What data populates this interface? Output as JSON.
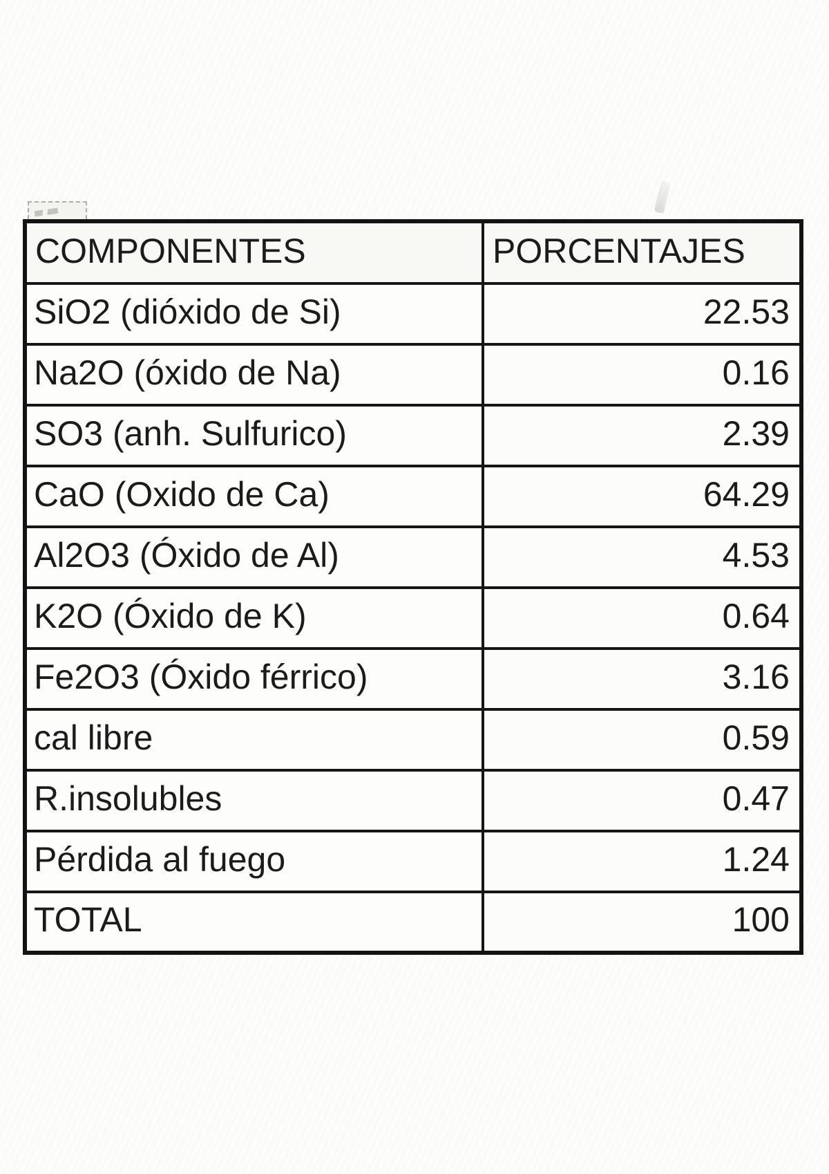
{
  "table": {
    "columns": [
      {
        "label": "COMPONENTES"
      },
      {
        "label": "PORCENTAJES"
      }
    ],
    "rows": [
      {
        "label": "SiO2 (dióxido de Si)",
        "value": "22.53"
      },
      {
        "label": "Na2O (óxido de Na)",
        "value": "0.16"
      },
      {
        "label": "SO3 (anh. Sulfurico)",
        "value": "2.39"
      },
      {
        "label": "CaO (Oxido de Ca)",
        "value": "64.29"
      },
      {
        "label": "Al2O3 (Óxido de Al)",
        "value": "4.53"
      },
      {
        "label": "K2O (Óxido de K)",
        "value": "0.64"
      },
      {
        "label": "Fe2O3 (Óxido férrico)",
        "value": "3.16"
      },
      {
        "label": "cal libre",
        "value": "0.59"
      },
      {
        "label": "R.insolubles",
        "value": "0.47"
      },
      {
        "label": "Pérdida al fuego",
        "value": "1.24"
      },
      {
        "label": "TOTAL",
        "value": "100"
      }
    ],
    "colors": {
      "border": "#161616",
      "text": "#1b1b1b",
      "background": "#fcfcfb"
    }
  },
  "chart_data": {
    "type": "table",
    "title": "",
    "columns": [
      "COMPONENTES",
      "PORCENTAJES"
    ],
    "rows": [
      [
        "SiO2 (dióxido de Si)",
        22.53
      ],
      [
        "Na2O (óxido de Na)",
        0.16
      ],
      [
        "SO3 (anh. Sulfurico)",
        2.39
      ],
      [
        "CaO (Oxido de Ca)",
        64.29
      ],
      [
        "Al2O3 (Óxido de Al)",
        4.53
      ],
      [
        "K2O (Óxido de K)",
        0.64
      ],
      [
        "Fe2O3 (Óxido férrico)",
        3.16
      ],
      [
        "cal libre",
        0.59
      ],
      [
        "R.insolubles",
        0.47
      ],
      [
        "Pérdida al fuego",
        1.24
      ],
      [
        "TOTAL",
        100
      ]
    ]
  }
}
